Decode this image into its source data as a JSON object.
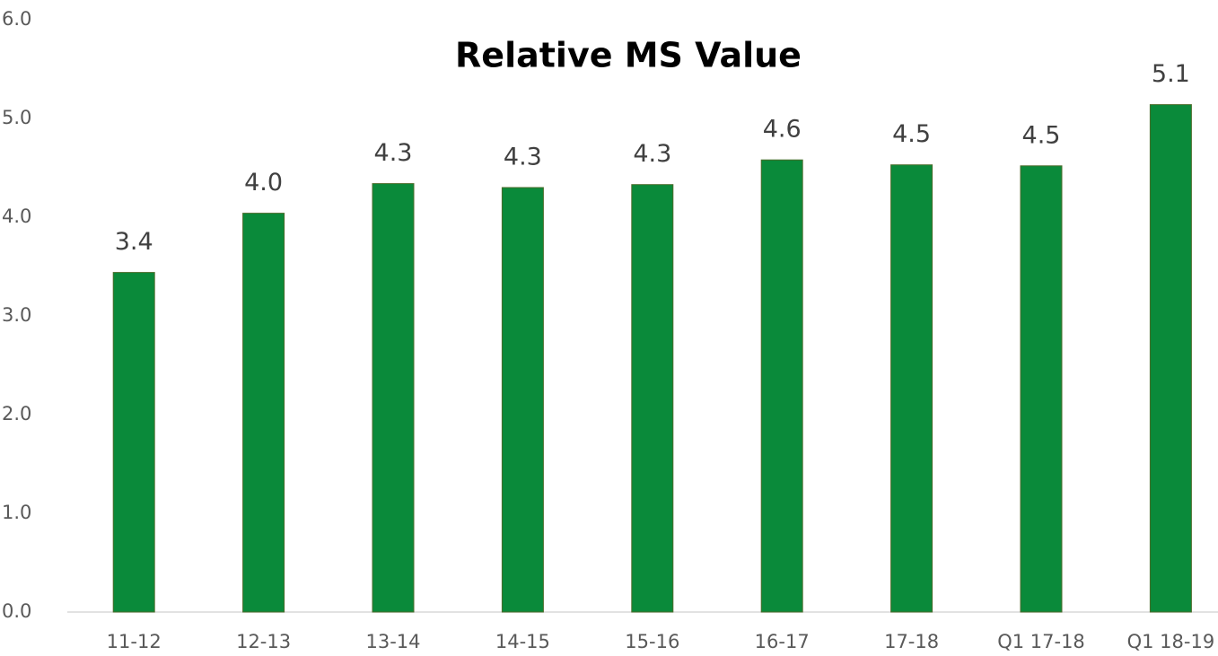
{
  "chart_data": {
    "type": "bar",
    "title": "Relative MS Value",
    "categories": [
      "11-12",
      "12-13",
      "13-14",
      "14-15",
      "15-16",
      "16-17",
      "17-18",
      "Q1 17-18",
      "Q1 18-19"
    ],
    "values": [
      3.44,
      4.04,
      4.34,
      4.3,
      4.33,
      4.58,
      4.53,
      4.52,
      5.14
    ],
    "value_labels": [
      "3.4",
      "4.0",
      "4.3",
      "4.3",
      "4.3",
      "4.6",
      "4.5",
      "4.5",
      "5.1"
    ],
    "color": "#0a8a3a",
    "ylim": [
      0,
      6
    ],
    "yticks": [
      {
        "value": 0,
        "label": "0.0"
      },
      {
        "value": 1,
        "label": "1.0"
      },
      {
        "value": 2,
        "label": "2.0"
      },
      {
        "value": 3,
        "label": "3.0"
      },
      {
        "value": 4,
        "label": "4.0"
      },
      {
        "value": 5,
        "label": "5.0"
      },
      {
        "value": 6,
        "label": "6.0"
      }
    ],
    "grid": false
  }
}
